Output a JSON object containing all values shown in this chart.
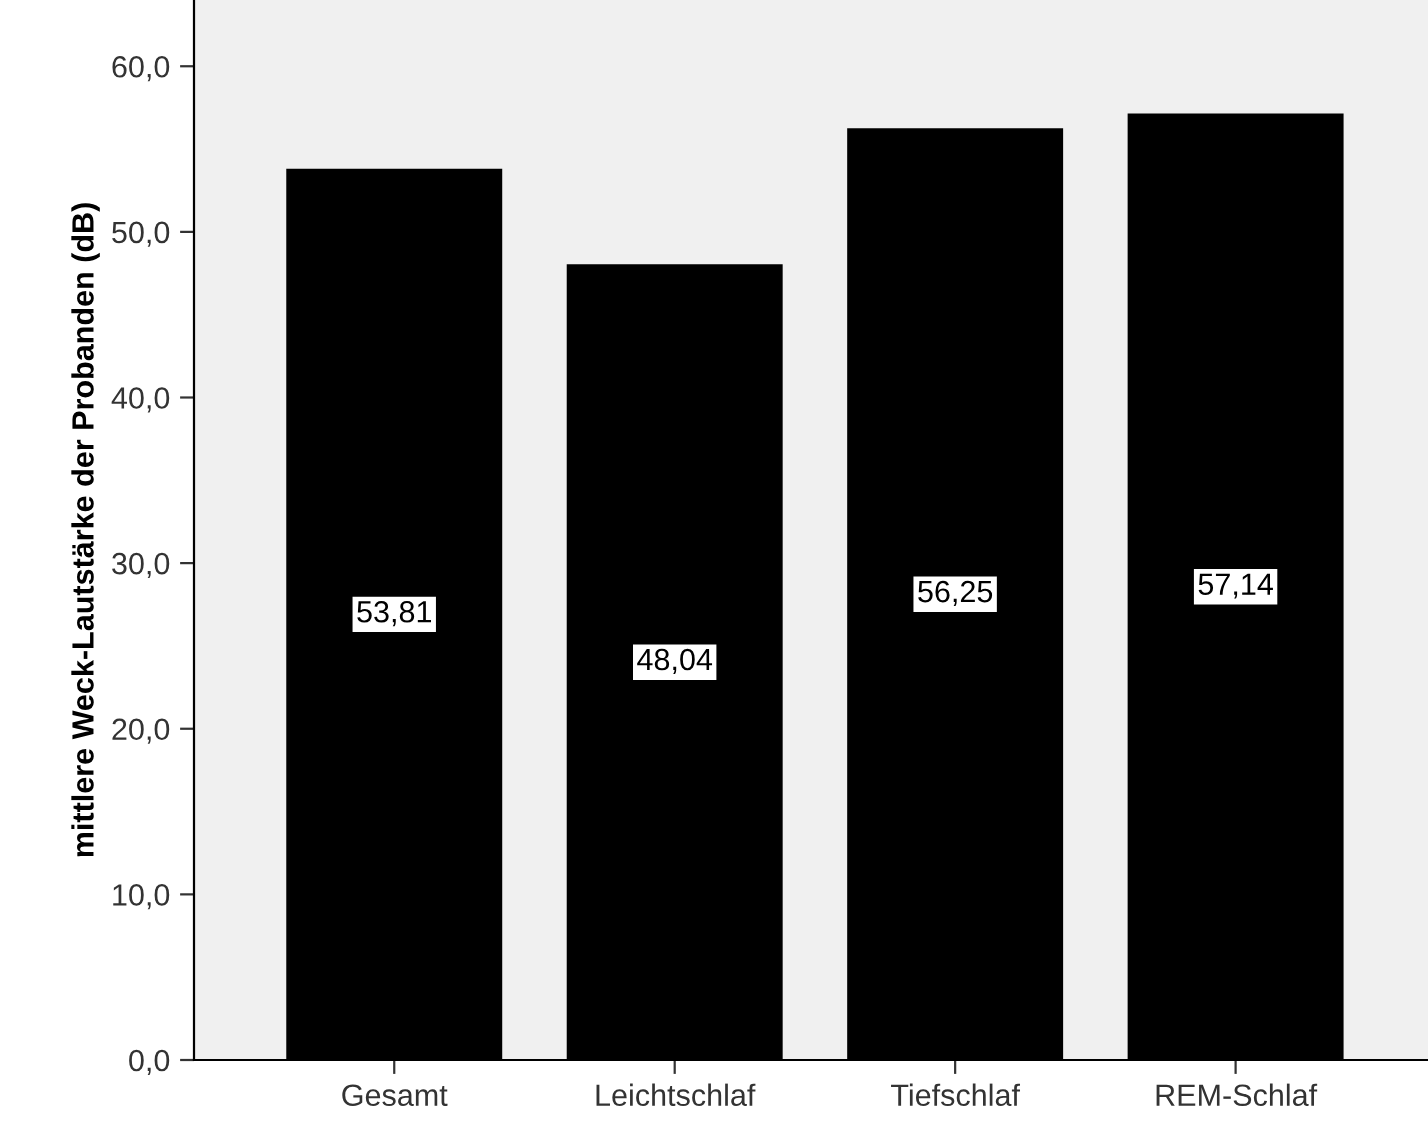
{
  "chart_data": {
    "type": "bar",
    "ylabel": "mittlere Weck-Lautstärke der Probanden (dB)",
    "categories": [
      "Gesamt",
      "Leichtschlaf",
      "Tiefschlaf",
      "REM-Schlaf"
    ],
    "values": [
      53.81,
      48.04,
      56.25,
      57.14
    ],
    "value_labels": [
      "53,81",
      "48,04",
      "56,25",
      "57,14"
    ],
    "color": "#000000",
    "ylim": [
      0,
      64
    ],
    "yticks": [
      {
        "value": 0,
        "label": "0,0"
      },
      {
        "value": 10,
        "label": "10,0"
      },
      {
        "value": 20,
        "label": "20,0"
      },
      {
        "value": 30,
        "label": "30,0"
      },
      {
        "value": 40,
        "label": "40,0"
      },
      {
        "value": 50,
        "label": "50,0"
      },
      {
        "value": 60,
        "label": "60,0"
      }
    ],
    "grid": false,
    "legend": false
  }
}
